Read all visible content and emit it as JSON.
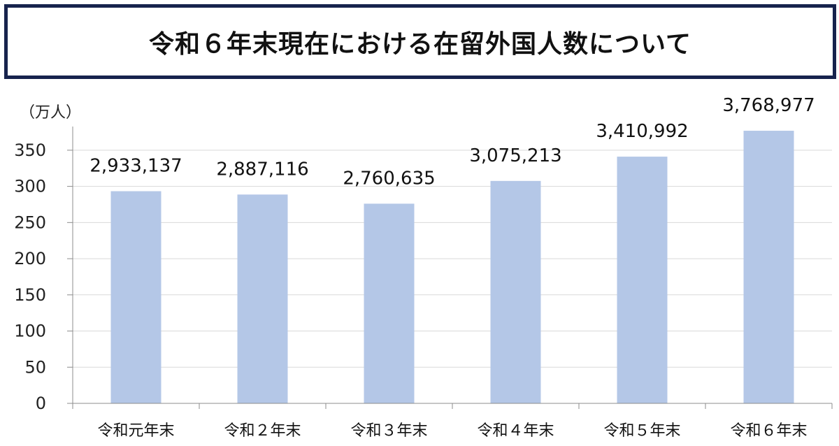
{
  "chart_data": {
    "type": "bar",
    "title": "令和６年末現在における在留外国人数について",
    "unit_label": "（万人）",
    "categories": [
      "令和元年末",
      "令和２年末",
      "令和３年末",
      "令和４年末",
      "令和５年末",
      "令和６年末"
    ],
    "values": [
      293.3137,
      288.7116,
      276.0635,
      307.5213,
      341.0992,
      376.8977
    ],
    "data_labels": [
      "2,933,137",
      "2,887,116",
      "2,760,635",
      "3,075,213",
      "3,410,992",
      "3,768,977"
    ],
    "yticks": [
      0,
      50,
      100,
      150,
      200,
      250,
      300,
      350
    ],
    "ylim": [
      0,
      375
    ],
    "grid": true,
    "bar_color": "#b4c7e7"
  }
}
